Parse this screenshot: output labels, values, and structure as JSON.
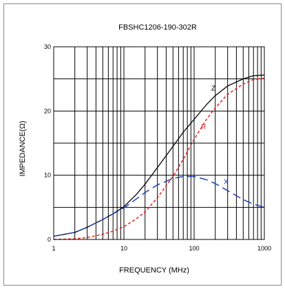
{
  "chart_data": {
    "type": "line",
    "title": "FBSHC1206-190-302R",
    "xlabel": "FREQUENCY (MHz)",
    "ylabel": "IMPEDANCE(Ω)",
    "x_scale": "log",
    "xlim": [
      1,
      1000
    ],
    "ylim": [
      0,
      30
    ],
    "x_ticks": [
      {
        "value": 1,
        "label": "1"
      },
      {
        "value": 10,
        "label": "10"
      },
      {
        "value": 100,
        "label": "100"
      },
      {
        "value": 1000,
        "label": "1000"
      }
    ],
    "y_ticks": [
      {
        "value": 0,
        "label": "0"
      },
      {
        "value": 10,
        "label": "10"
      },
      {
        "value": 20,
        "label": "20"
      },
      {
        "value": 30,
        "label": "30"
      }
    ],
    "grid": true,
    "series": [
      {
        "name": "Z",
        "color": "#000000",
        "dash": "solid",
        "x": [
          1,
          2,
          3,
          5,
          7,
          10,
          15,
          20,
          30,
          50,
          70,
          100,
          150,
          200,
          300,
          500,
          700,
          1000
        ],
        "y": [
          0.5,
          1.1,
          1.9,
          3.1,
          4.0,
          5.1,
          7.0,
          8.6,
          11.2,
          14.5,
          16.7,
          18.7,
          21.0,
          22.4,
          23.9,
          25.0,
          25.5,
          25.6
        ]
      },
      {
        "name": "R",
        "color": "#e0201c",
        "dash": "short",
        "x": [
          1,
          2,
          3,
          5,
          7,
          10,
          15,
          20,
          30,
          50,
          70,
          100,
          150,
          200,
          300,
          500,
          700,
          1000
        ],
        "y": [
          0.0,
          0.1,
          0.3,
          0.8,
          1.3,
          2.0,
          3.2,
          4.3,
          6.5,
          9.8,
          12.5,
          15.6,
          18.7,
          20.5,
          22.6,
          24.2,
          24.9,
          25.1
        ]
      },
      {
        "name": "X",
        "color": "#1a3fb0",
        "dash": "long",
        "x": [
          1,
          2,
          3,
          5,
          7,
          10,
          15,
          20,
          30,
          50,
          70,
          100,
          150,
          200,
          300,
          500,
          700,
          1000
        ],
        "y": [
          0.5,
          1.1,
          1.9,
          3.1,
          4.0,
          4.9,
          6.3,
          7.3,
          8.5,
          9.5,
          9.8,
          9.8,
          9.3,
          8.7,
          7.6,
          6.2,
          5.5,
          5.0
        ]
      }
    ]
  }
}
